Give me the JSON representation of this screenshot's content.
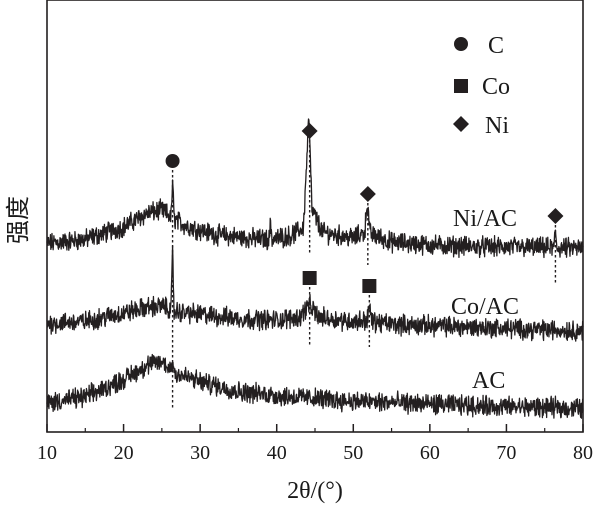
{
  "chart_data": {
    "type": "line",
    "xlabel": "2θ/(°)",
    "ylabel": "强度",
    "xlim": [
      10,
      80
    ],
    "xticks": [
      10,
      20,
      30,
      40,
      50,
      60,
      70,
      80
    ],
    "yticks_shown": false,
    "grid": false,
    "legend_placement": "top-right",
    "legend": [
      {
        "marker": "circle",
        "label": "C"
      },
      {
        "marker": "square",
        "label": "Co"
      },
      {
        "marker": "diamond",
        "label": "Ni"
      }
    ],
    "series": [
      {
        "name": "Ni/AC",
        "color": "#231f20",
        "points": [
          [
            10,
            0.12
          ],
          [
            15,
            0.18
          ],
          [
            20,
            0.36
          ],
          [
            23,
            0.55
          ],
          [
            25,
            0.6
          ],
          [
            26.2,
            0.5
          ],
          [
            26.4,
            1.0
          ],
          [
            26.6,
            0.48
          ],
          [
            28,
            0.38
          ],
          [
            32,
            0.25
          ],
          [
            36,
            0.2
          ],
          [
            39,
            0.18
          ],
          [
            39.2,
            0.42
          ],
          [
            39.4,
            0.18
          ],
          [
            42,
            0.24
          ],
          [
            43.5,
            0.35
          ],
          [
            44.2,
            1.95
          ],
          [
            44.6,
            0.6
          ],
          [
            46,
            0.28
          ],
          [
            50,
            0.2
          ],
          [
            51.5,
            0.28
          ],
          [
            51.8,
            0.72
          ],
          [
            52.2,
            0.26
          ],
          [
            55,
            0.14
          ],
          [
            60,
            0.1
          ],
          [
            65,
            0.08
          ],
          [
            70,
            0.07
          ],
          [
            75,
            0.06
          ],
          [
            76.2,
            0.06
          ],
          [
            76.4,
            0.3
          ],
          [
            76.6,
            0.06
          ],
          [
            80,
            0.05
          ]
        ]
      },
      {
        "name": "Co/AC",
        "color": "#231f20",
        "points": [
          [
            10,
            0.05
          ],
          [
            15,
            0.08
          ],
          [
            20,
            0.2
          ],
          [
            23,
            0.28
          ],
          [
            25,
            0.3
          ],
          [
            26.2,
            0.25
          ],
          [
            26.4,
            1.05
          ],
          [
            26.6,
            0.22
          ],
          [
            30,
            0.18
          ],
          [
            35,
            0.12
          ],
          [
            40,
            0.1
          ],
          [
            43,
            0.14
          ],
          [
            44.2,
            0.32
          ],
          [
            45.5,
            0.14
          ],
          [
            50,
            0.08
          ],
          [
            51.8,
            0.1
          ],
          [
            52.1,
            0.3
          ],
          [
            52.4,
            0.08
          ],
          [
            55,
            0.04
          ],
          [
            60,
            0.02
          ],
          [
            65,
            0.0
          ],
          [
            70,
            -0.02
          ],
          [
            75,
            -0.04
          ],
          [
            80,
            -0.05
          ]
        ]
      },
      {
        "name": "AC",
        "color": "#231f20",
        "points": [
          [
            10,
            0.02
          ],
          [
            15,
            0.1
          ],
          [
            20,
            0.35
          ],
          [
            23,
            0.55
          ],
          [
            25,
            0.6
          ],
          [
            26.2,
            0.5
          ],
          [
            26.4,
            0.62
          ],
          [
            26.6,
            0.45
          ],
          [
            30,
            0.32
          ],
          [
            35,
            0.18
          ],
          [
            40,
            0.12
          ],
          [
            45,
            0.08
          ],
          [
            50,
            0.04
          ],
          [
            55,
            0.02
          ],
          [
            60,
            0.0
          ],
          [
            65,
            -0.02
          ],
          [
            70,
            -0.04
          ],
          [
            75,
            -0.05
          ],
          [
            80,
            -0.06
          ]
        ]
      }
    ],
    "reference_lines": [
      {
        "x": 26.4,
        "marker": "circle",
        "phase": "C"
      },
      {
        "x": 44.3,
        "marker": "diamond",
        "phase": "Ni"
      },
      {
        "x": 44.3,
        "marker": "square",
        "phase": "Co"
      },
      {
        "x": 51.9,
        "marker": "diamond",
        "phase": "Ni"
      },
      {
        "x": 52.1,
        "marker": "square",
        "phase": "Co"
      },
      {
        "x": 76.4,
        "marker": "diamond",
        "phase": "Ni"
      }
    ]
  }
}
